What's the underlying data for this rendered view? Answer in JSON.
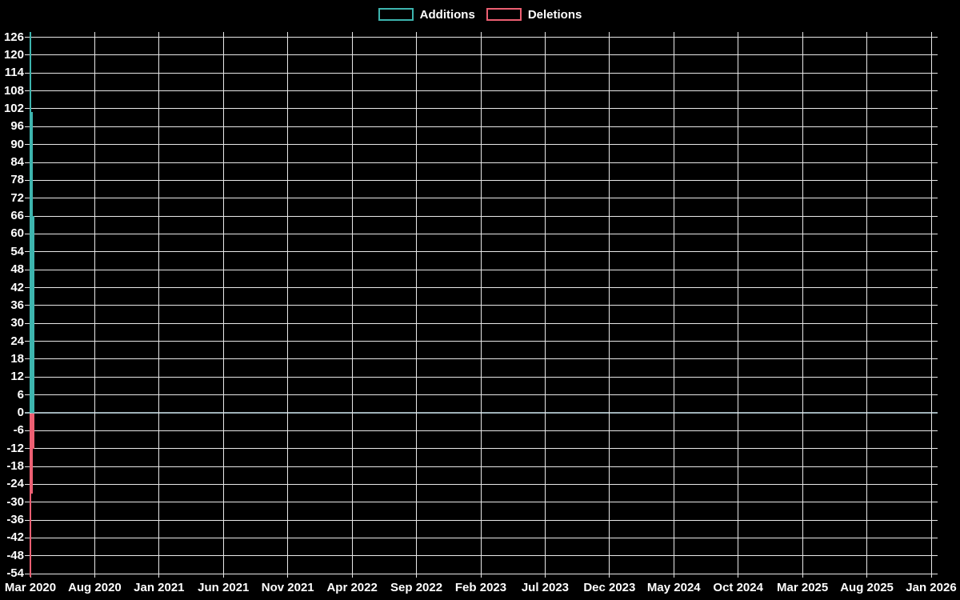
{
  "page": {
    "background": "#000000",
    "text_color": "#ffffff"
  },
  "chart_data": {
    "type": "bar",
    "subtype": "impulse-vertical-lines",
    "title": "",
    "legend_position": "top-center",
    "legend": [
      {
        "label": "Additions",
        "color": "#3db4ae"
      },
      {
        "label": "Deletions",
        "color": "#ec5f72"
      }
    ],
    "x_axis": {
      "tick_labels": [
        "Mar 2020",
        "Aug 2020",
        "Jan 2021",
        "Jun 2021",
        "Nov 2021",
        "Apr 2022",
        "Sep 2022",
        "Feb 2023",
        "Jul 2023",
        "Dec 2023",
        "May 2024",
        "Oct 2024",
        "Mar 2025",
        "Aug 2025",
        "Jan 2026"
      ],
      "months_per_tick": 5
    },
    "y_axis": {
      "tick_labels": [
        "126",
        "120",
        "114",
        "108",
        "102",
        "96",
        "90",
        "84",
        "78",
        "72",
        "66",
        "60",
        "54",
        "48",
        "42",
        "36",
        "30",
        "24",
        "18",
        "12",
        "6",
        "0",
        "-6",
        "-12",
        "-18",
        "-24",
        "-30",
        "-36",
        "-42",
        "-48",
        "-54"
      ],
      "tick_min": -54,
      "tick_max": 126,
      "tick_step": 6,
      "ylim": [
        -55,
        128
      ]
    },
    "series": [
      {
        "name": "Additions",
        "color": "#3db4ae",
        "points": [
          {
            "x_label": "Mar 2020 (wk 1)",
            "x_month_offset": 0.0,
            "value": 128
          },
          {
            "x_label": "Mar 2020 (wk 2)",
            "x_month_offset": 0.12,
            "value": 101
          },
          {
            "x_label": "Mar 2020 (wk 3)",
            "x_month_offset": 0.25,
            "value": 66
          }
        ]
      },
      {
        "name": "Deletions",
        "color": "#ec5f72",
        "points": [
          {
            "x_label": "Mar 2020 (wk 1)",
            "x_month_offset": 0.0,
            "value": -55
          },
          {
            "x_label": "Mar 2020 (wk 2)",
            "x_month_offset": 0.12,
            "value": -27
          },
          {
            "x_label": "Mar 2020 (wk 3)",
            "x_month_offset": 0.25,
            "value": -12
          }
        ]
      }
    ],
    "grid": {
      "show": true,
      "color": "#e8e8e8",
      "zero_line_color": "#9fb1b8"
    }
  }
}
